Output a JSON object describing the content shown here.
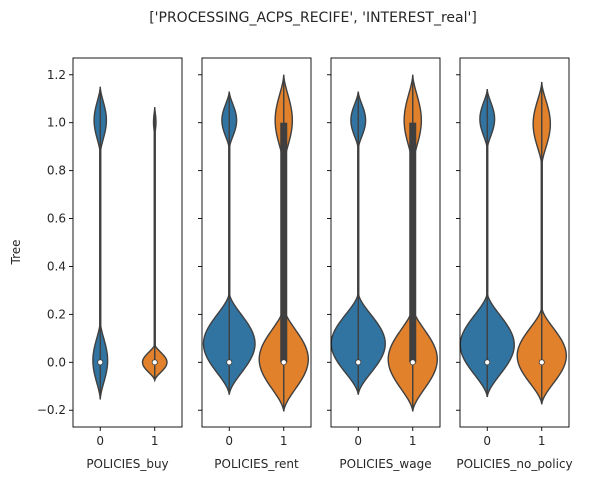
{
  "chart_data": {
    "type": "violin",
    "suptitle": "['PROCESSING_ACPS_RECIFE', 'INTEREST_real']",
    "ylabel": "Tree",
    "ylim": [
      -0.27,
      1.27
    ],
    "yticks": [
      -0.2,
      0.0,
      0.2,
      0.4,
      0.6,
      0.8,
      1.0,
      1.2
    ],
    "ytick_labels": [
      "−0.2",
      "0.0",
      "0.2",
      "0.4",
      "0.6",
      "0.8",
      "1.0",
      "1.2"
    ],
    "colors": [
      "#3274a1",
      "#e1812c"
    ],
    "panels": [
      {
        "xlabel": "POLICIES_buy",
        "categories": [
          "0",
          "1"
        ],
        "violins": [
          {
            "category": "0",
            "min": -0.155,
            "max": 1.15,
            "median": 0.0,
            "q1": 0.0,
            "q3": 0.0,
            "lower_lobe": [
              -0.155,
              0.17,
              0.06
            ],
            "upper_lobe": [
              0.87,
              1.15,
              0.05
            ]
          },
          {
            "category": "1",
            "min": -0.075,
            "max": 1.065,
            "median": 0.0,
            "q1": 0.0,
            "q3": 0.0,
            "lower_lobe": [
              -0.075,
              0.075,
              0.1
            ],
            "upper_lobe": [
              0.94,
              1.065,
              0.01
            ]
          }
        ]
      },
      {
        "xlabel": "POLICIES_rent",
        "categories": [
          "0",
          "1"
        ],
        "violins": [
          {
            "category": "0",
            "min": -0.135,
            "max": 1.13,
            "median": 0.0,
            "q1": 0.0,
            "q3": 0.0,
            "lower_lobe": [
              -0.135,
              0.29,
              0.21
            ],
            "upper_lobe": [
              0.89,
              1.13,
              0.06
            ]
          },
          {
            "category": "1",
            "min": -0.205,
            "max": 1.2,
            "median": 0.0,
            "q1": 0.0,
            "q3": 1.0,
            "lower_lobe": [
              -0.205,
              0.23,
              0.2
            ],
            "upper_lobe": [
              0.82,
              1.2,
              0.07
            ]
          }
        ]
      },
      {
        "xlabel": "POLICIES_wage",
        "categories": [
          "0",
          "1"
        ],
        "violins": [
          {
            "category": "0",
            "min": -0.135,
            "max": 1.13,
            "median": 0.0,
            "q1": 0.0,
            "q3": 0.0,
            "lower_lobe": [
              -0.135,
              0.29,
              0.22
            ],
            "upper_lobe": [
              0.89,
              1.13,
              0.06
            ]
          },
          {
            "category": "1",
            "min": -0.205,
            "max": 1.2,
            "median": 0.0,
            "q1": 0.0,
            "q3": 1.0,
            "lower_lobe": [
              -0.205,
              0.23,
              0.2
            ],
            "upper_lobe": [
              0.82,
              1.2,
              0.07
            ]
          }
        ]
      },
      {
        "xlabel": "POLICIES_no_policy",
        "categories": [
          "0",
          "1"
        ],
        "violins": [
          {
            "category": "0",
            "min": -0.145,
            "max": 1.14,
            "median": 0.0,
            "q1": 0.0,
            "q3": 0.0,
            "lower_lobe": [
              -0.145,
              0.29,
              0.22
            ],
            "upper_lobe": [
              0.89,
              1.14,
              0.06
            ]
          },
          {
            "category": "1",
            "min": -0.175,
            "max": 1.17,
            "median": 0.0,
            "q1": 0.0,
            "q3": 0.0,
            "lower_lobe": [
              -0.175,
              0.23,
              0.2
            ],
            "upper_lobe": [
              0.82,
              1.17,
              0.07
            ]
          }
        ]
      }
    ]
  }
}
